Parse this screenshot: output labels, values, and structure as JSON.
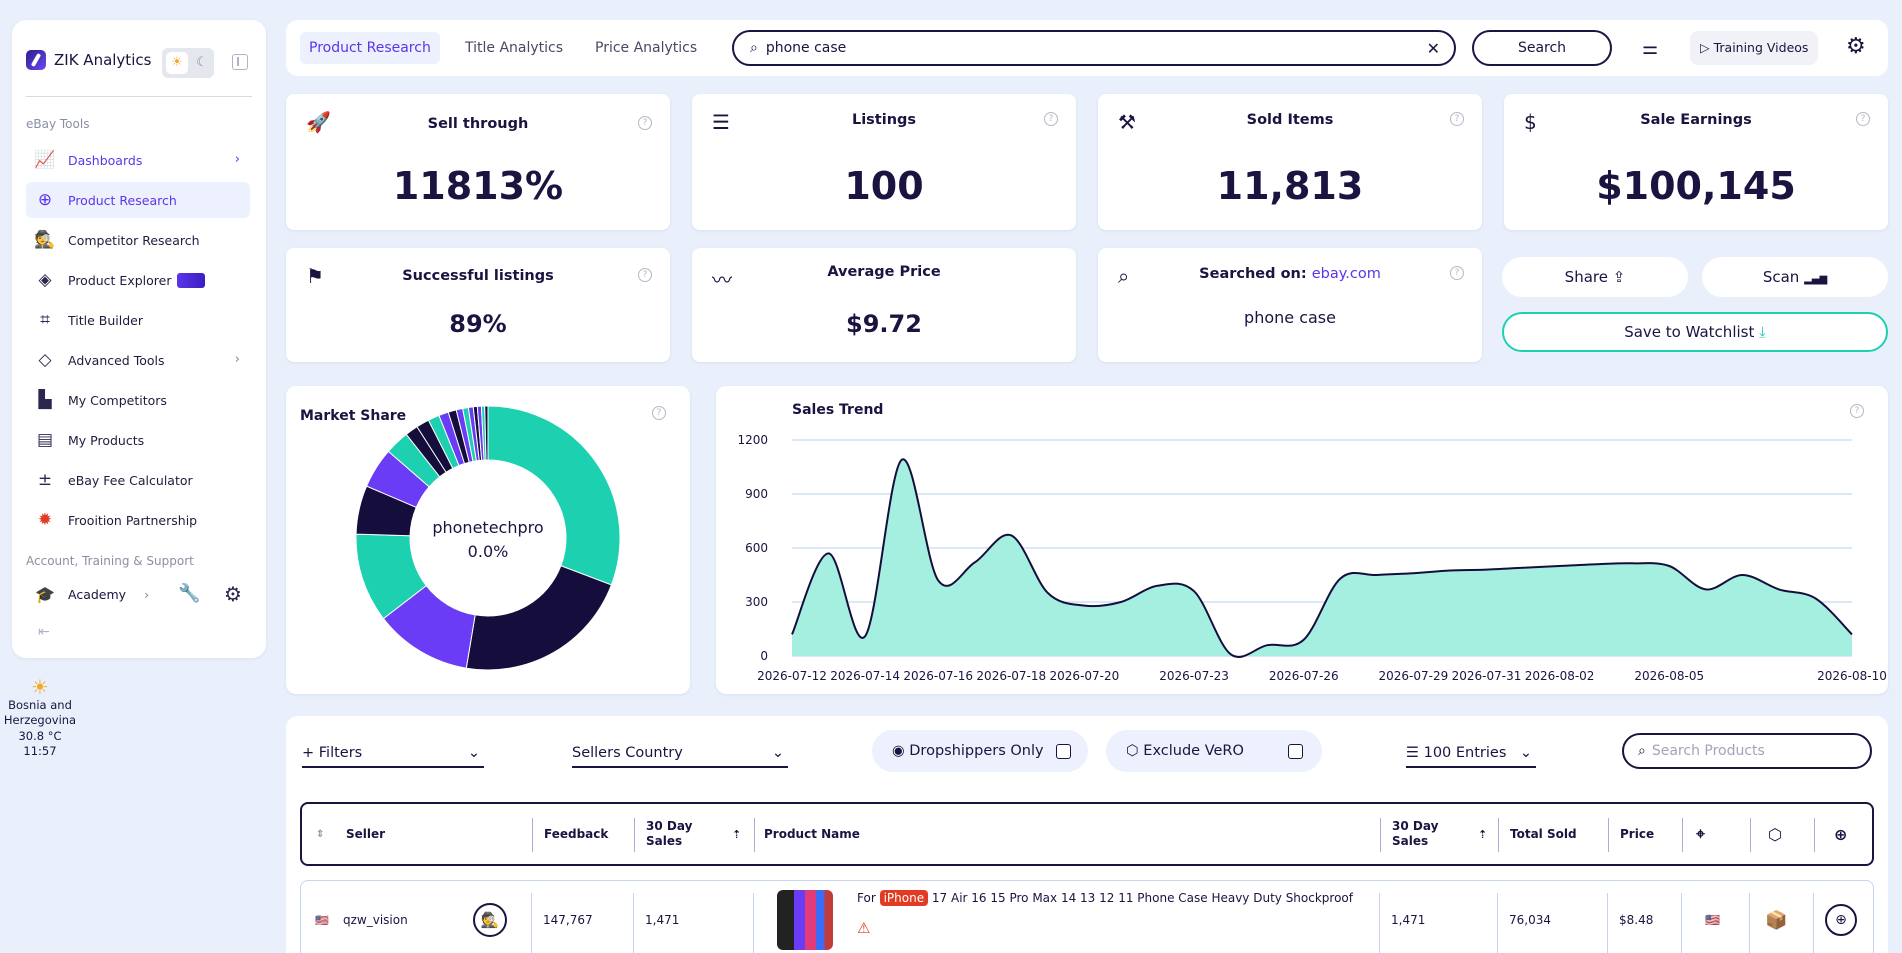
{
  "sidebar": {
    "brand": "ZIK Analytics",
    "section_ebay": "eBay Tools",
    "items": [
      {
        "label": "Dashboards"
      },
      {
        "label": "Product Research"
      },
      {
        "label": "Competitor Research"
      },
      {
        "label": "Product Explorer"
      },
      {
        "label": "Title Builder"
      },
      {
        "label": "Advanced Tools"
      },
      {
        "label": "My Competitors"
      },
      {
        "label": "My Products"
      },
      {
        "label": "eBay Fee Calculator"
      },
      {
        "label": "Frooition Partnership"
      }
    ],
    "section_account": "Account, Training & Support",
    "academy": "Academy"
  },
  "weather": {
    "location": "Bosnia and Herzegovina",
    "temp": "30.8 °C",
    "time": "11:57"
  },
  "topbar": {
    "tabs": [
      "Product Research",
      "Title Analytics",
      "Price Analytics"
    ],
    "search_value": "phone case",
    "search_button": "Search",
    "training": "Training Videos"
  },
  "stats": {
    "sell_through": {
      "title": "Sell through",
      "value": "11813%"
    },
    "listings": {
      "title": "Listings",
      "value": "100"
    },
    "sold_items": {
      "title": "Sold Items",
      "value": "11,813"
    },
    "sale_earnings": {
      "title": "Sale Earnings",
      "value": "$100,145"
    },
    "successful": {
      "title": "Successful listings",
      "value": "89%"
    },
    "avg_price": {
      "title": "Average Price",
      "value": "$9.72"
    },
    "searched": {
      "title": "Searched on:",
      "site": "ebay.com",
      "value": "phone case"
    }
  },
  "actions": {
    "share": "Share",
    "scan": "Scan",
    "watchlist": "Save to Watchlist"
  },
  "market_share": {
    "title": "Market Share",
    "center_name": "phonetechpro",
    "center_value": "0.0%"
  },
  "colors": {
    "accent": "#5b35e9",
    "teal": "#1dd1b0",
    "navy": "#1a1440",
    "area": "#a5efe0"
  },
  "chart_data": [
    {
      "type": "pie",
      "title": "Market Share",
      "values": [
        31,
        22,
        12,
        11,
        6,
        5,
        3,
        1.6,
        1.6,
        1.4,
        1.2,
        1,
        0.8,
        0.7,
        0.6,
        0.5,
        0.5,
        0.4,
        0.4
      ],
      "colors": [
        "#1dd1b0",
        "#150e3d",
        "#6a3cf5",
        "#1dd1b0",
        "#150e3d",
        "#6a3cf5",
        "#1dd1b0",
        "#150e3d",
        "#150e3d",
        "#1dd1b0",
        "#6a3cf5",
        "#150e3d",
        "#6a3cf5",
        "#1dd1b0",
        "#6a3cf5",
        "#150e3d",
        "#6a3cf5",
        "#1dd1b0",
        "#150e3d"
      ]
    },
    {
      "type": "area",
      "title": "Sales Trend",
      "x": [
        "2026-07-12",
        "2026-07-13",
        "2026-07-14",
        "2026-07-15",
        "2026-07-16",
        "2026-07-17",
        "2026-07-18",
        "2026-07-19",
        "2026-07-20",
        "2026-07-21",
        "2026-07-22",
        "2026-07-23",
        "2026-07-24",
        "2026-07-25",
        "2026-07-26",
        "2026-07-27",
        "2026-07-28",
        "2026-07-29",
        "2026-07-30",
        "2026-07-31",
        "2026-08-01",
        "2026-08-02",
        "2026-08-03",
        "2026-08-04",
        "2026-08-05",
        "2026-08-06",
        "2026-08-07",
        "2026-08-08",
        "2026-08-09",
        "2026-08-10"
      ],
      "values": [
        120,
        570,
        110,
        1090,
        420,
        520,
        670,
        350,
        280,
        300,
        390,
        360,
        10,
        60,
        90,
        430,
        450,
        460,
        475,
        480,
        490,
        500,
        510,
        515,
        500,
        370,
        450,
        370,
        320,
        120
      ],
      "ylim": [
        0,
        1200
      ],
      "yticks": [
        1200,
        900,
        600,
        300,
        0
      ],
      "xticks": [
        "2026-07-12",
        "2026-07-14",
        "2026-07-16",
        "2026-07-18",
        "2026-07-20",
        "2026-07-23",
        "2026-07-26",
        "2026-07-29",
        "2026-07-31",
        "2026-08-02",
        "2026-08-05",
        "2026-08-10"
      ],
      "grid": true
    }
  ],
  "filters": {
    "filters_label": "Filters",
    "country_label": "Sellers Country",
    "dropshippers": "Dropshippers Only",
    "vero": "Exclude VeRO",
    "entries": "100 Entries",
    "search_placeholder": "Search Products"
  },
  "table": {
    "headers": [
      "Seller",
      "Feedback",
      "30 Day Sales",
      "Product Name",
      "30 Day Sales",
      "Total Sold",
      "Price"
    ],
    "rows": [
      {
        "seller": "qzw_vision",
        "feedback": "147,767",
        "sales30": "1,471",
        "name_prefix": "For",
        "name_badge": "iPhone",
        "name_rest": "17 Air 16 15 Pro Max 14 13 12 11 Phone Case Heavy Duty Shockproof",
        "sales30b": "1,471",
        "total_sold": "76,034",
        "price": "$8.48"
      }
    ]
  }
}
